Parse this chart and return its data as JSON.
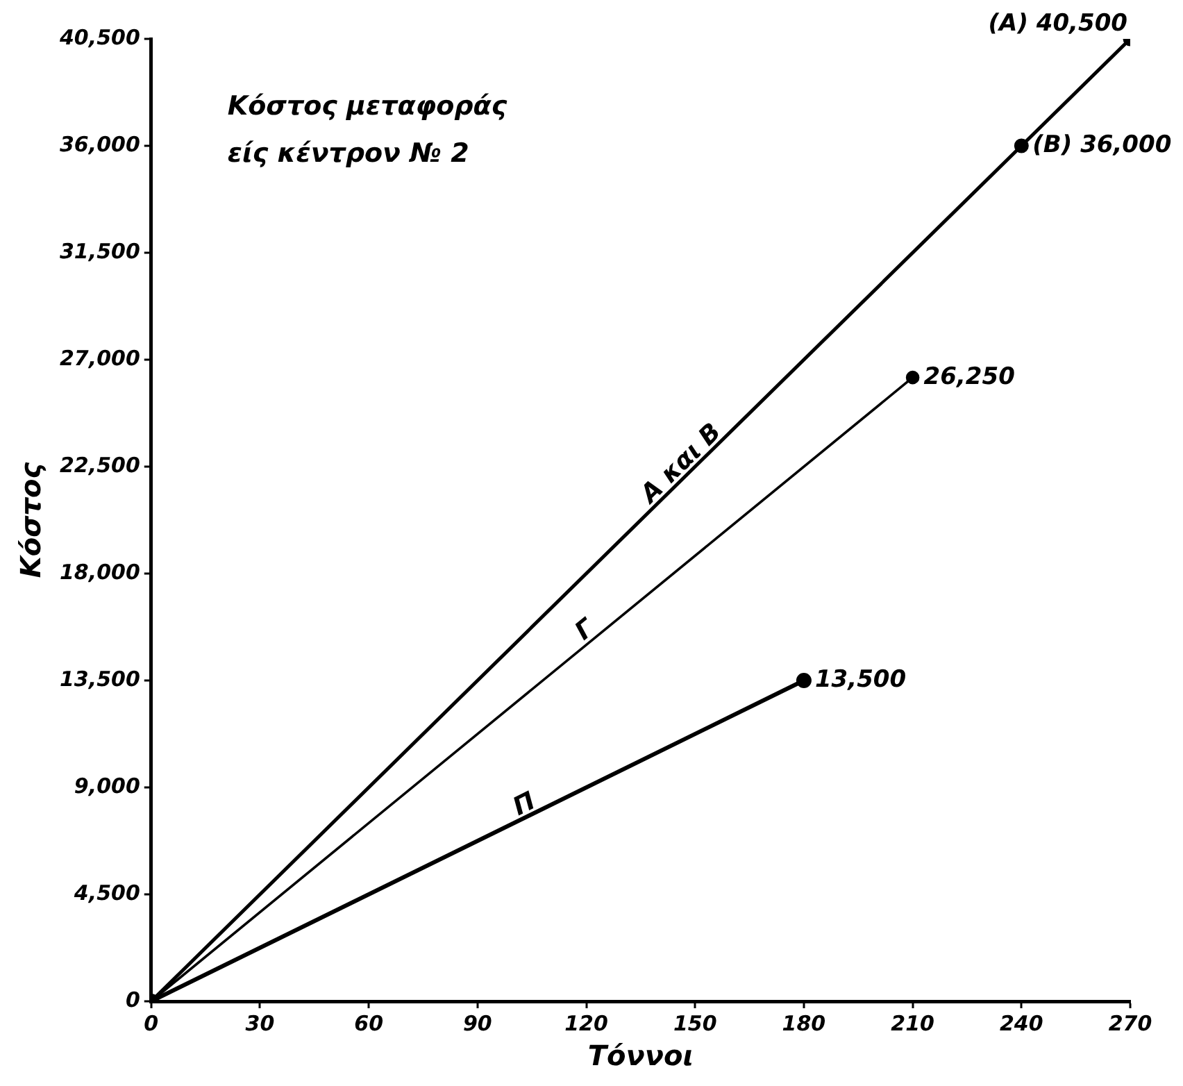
{
  "chart_data": {
    "type": "line",
    "title": "Κόστος μεταφοράς είς κέντρον № 2",
    "xlabel": "Τόννοι",
    "ylabel": "Κόστος",
    "series": [
      {
        "name": "A και B",
        "color": "#000000",
        "x": [
          0,
          240,
          270
        ],
        "values": [
          0,
          36000,
          40500
        ]
      },
      {
        "name": "Γ",
        "color": "#000000",
        "x": [
          0,
          210
        ],
        "values": [
          0,
          26250
        ]
      },
      {
        "name": "Π",
        "color": "#000000",
        "x": [
          0,
          180
        ],
        "values": [
          0,
          13500
        ]
      }
    ],
    "xlim": [
      0,
      270
    ],
    "xticks": [
      0,
      30,
      60,
      90,
      120,
      150,
      180,
      210,
      240,
      270
    ],
    "ylim": [
      0,
      40500
    ],
    "yticks": [
      {
        "value": 0,
        "label": "0"
      },
      {
        "value": 4500,
        "label": "4,500"
      },
      {
        "value": 9000,
        "label": "9,000"
      },
      {
        "value": 13500,
        "label": "13,500"
      },
      {
        "value": 18000,
        "label": "18,000"
      },
      {
        "value": 22500,
        "label": "22,500"
      },
      {
        "value": 27000,
        "label": "27,000"
      },
      {
        "value": 31500,
        "label": "31,500"
      },
      {
        "value": 36000,
        "label": "36,000"
      },
      {
        "value": 40500,
        "label": "40,500"
      }
    ],
    "annotations": [
      {
        "text": "(A) 40,500",
        "x": 270,
        "y": 40500
      },
      {
        "text": "(B) 36,000",
        "x": 240,
        "y": 36000
      },
      {
        "text": "26,250",
        "x": 210,
        "y": 26250
      },
      {
        "text": "13,500",
        "x": 180,
        "y": 13500
      }
    ],
    "grid": false,
    "legend": false,
    "marker": "circle",
    "line_style": "solid"
  }
}
